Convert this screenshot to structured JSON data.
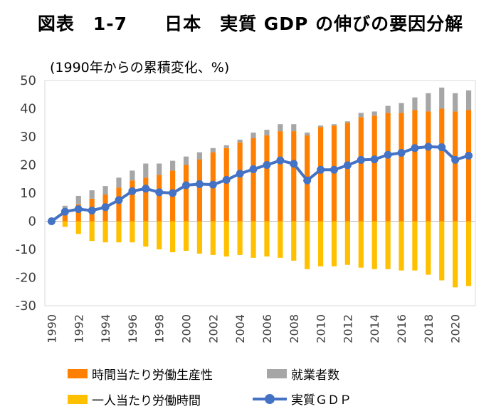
{
  "chart_data": {
    "type": "bar",
    "title": "図表　1-7　　日本　実質 GDP の伸びの要因分解",
    "unit_label": "(1990年からの累積変化、%)",
    "xlabel": "",
    "ylabel": "",
    "ylim": [
      -30,
      50
    ],
    "yticks": [
      -30,
      -20,
      -10,
      0,
      10,
      20,
      30,
      40,
      50
    ],
    "x": [
      1990,
      1991,
      1992,
      1993,
      1994,
      1995,
      1996,
      1997,
      1998,
      1999,
      2000,
      2001,
      2002,
      2003,
      2004,
      2005,
      2006,
      2007,
      2008,
      2009,
      2010,
      2011,
      2012,
      2013,
      2014,
      2015,
      2016,
      2017,
      2018,
      2019,
      2020,
      2021
    ],
    "xtick_labels": [
      "1990",
      "1992",
      "1994",
      "1996",
      "1998",
      "2000",
      "2002",
      "2004",
      "2006",
      "2008",
      "2010",
      "2012",
      "2014",
      "2016",
      "2018",
      "2020"
    ],
    "series": [
      {
        "name": "時間当たり労働生産性",
        "kind": "bar",
        "color": "#FF7F00",
        "values": [
          0,
          3.5,
          6,
          8,
          9.5,
          12,
          14.5,
          15.5,
          16.5,
          18,
          20,
          22,
          24.5,
          26,
          28,
          29.5,
          30.5,
          32,
          32,
          30.5,
          33.5,
          34,
          35,
          37,
          37.5,
          38.5,
          38.5,
          39.5,
          39,
          40,
          39,
          39.5
        ]
      },
      {
        "name": "就業者数",
        "kind": "bar",
        "color": "#A6A6A6",
        "values": [
          0,
          2,
          3,
          3,
          3,
          3.5,
          3.5,
          5,
          4,
          3.5,
          3,
          2.5,
          1.5,
          1,
          1,
          2,
          2,
          2.5,
          2.5,
          1,
          0.5,
          0.5,
          0.5,
          1.5,
          1.5,
          2.5,
          3.5,
          4.5,
          6.5,
          7.5,
          6.5,
          7
        ]
      },
      {
        "name": "一人当たり労働時間",
        "kind": "bar",
        "color": "#FFC000",
        "values": [
          0,
          -2,
          -4.5,
          -7,
          -7.5,
          -7.5,
          -7.5,
          -9,
          -10,
          -11,
          -10.5,
          -11.5,
          -12,
          -12.5,
          -12,
          -13,
          -12.5,
          -13,
          -14,
          -17,
          -16,
          -16,
          -15.5,
          -16.5,
          -17,
          -17,
          -17.5,
          -17.5,
          -19,
          -21,
          -23.5,
          -23
        ]
      },
      {
        "name": "実質ＧＤＰ",
        "kind": "line",
        "color": "#4472C4",
        "values": [
          0,
          3.4,
          4.3,
          3.8,
          5.0,
          7.5,
          10.7,
          11.6,
          10.3,
          10.0,
          12.8,
          13.2,
          13.0,
          14.7,
          16.9,
          18.5,
          20.0,
          21.6,
          20.4,
          14.5,
          18.3,
          18.3,
          19.9,
          21.8,
          22.0,
          23.6,
          24.3,
          26.0,
          26.5,
          26.3,
          21.8,
          23.3
        ]
      }
    ]
  }
}
